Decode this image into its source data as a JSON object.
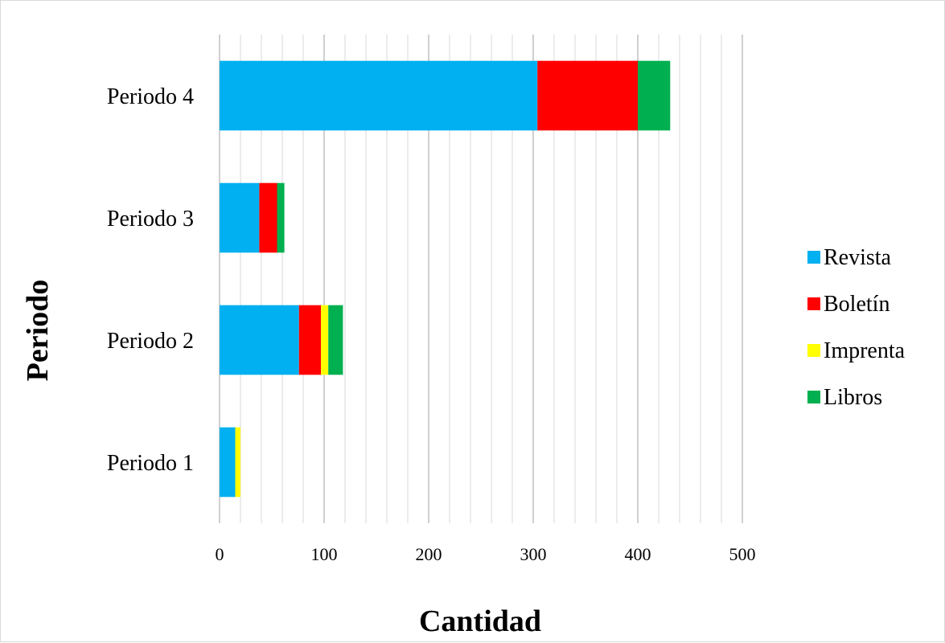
{
  "chart_data": {
    "type": "bar",
    "orientation": "horizontal",
    "stacked": true,
    "categories": [
      "Periodo 1",
      "Periodo 2",
      "Periodo 3",
      "Periodo 4"
    ],
    "series": [
      {
        "name": "Revista",
        "color": "#00B0F0",
        "values": [
          15,
          76,
          38,
          304
        ]
      },
      {
        "name": "Boletín",
        "color": "#FF0000",
        "values": [
          0,
          21,
          17,
          96
        ]
      },
      {
        "name": "Imprenta",
        "color": "#FFFF00",
        "values": [
          5,
          7,
          0,
          0
        ]
      },
      {
        "name": "Libros",
        "color": "#00B050",
        "values": [
          0,
          14,
          7,
          31
        ]
      }
    ],
    "xlabel": "Cantidad",
    "ylabel": "Periodo",
    "xlim": [
      0,
      500
    ],
    "xticks": [
      0,
      100,
      200,
      300,
      400,
      500
    ],
    "minor_step": 20,
    "grid": true,
    "legend": "right"
  }
}
